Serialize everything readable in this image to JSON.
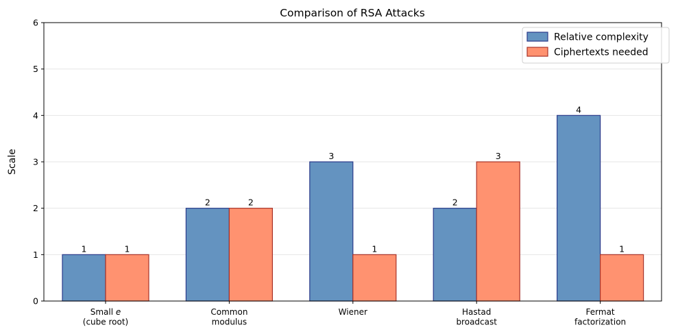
{
  "chart_data": {
    "type": "bar",
    "title": "Comparison of RSA Attacks",
    "xlabel": "",
    "ylabel": "Scale",
    "ylim": [
      0,
      6
    ],
    "yticks": [
      0,
      1,
      2,
      3,
      4,
      5,
      6
    ],
    "grid": "y",
    "legend_position": "top-right",
    "categories": [
      [
        "Small e",
        "(cube root)"
      ],
      [
        "Common",
        "modulus"
      ],
      [
        "Wiener"
      ],
      [
        "Hastad",
        "broadcast"
      ],
      [
        "Fermat",
        "factorization"
      ]
    ],
    "series": [
      {
        "name": "Relative complexity",
        "values": [
          1,
          2,
          3,
          2,
          4
        ],
        "color": "#6493c0",
        "edge": "#2a3a8a"
      },
      {
        "name": "Ciphertexts needed",
        "values": [
          1,
          2,
          1,
          3,
          1
        ],
        "color": "#ff9270",
        "edge": "#a83228"
      }
    ]
  }
}
